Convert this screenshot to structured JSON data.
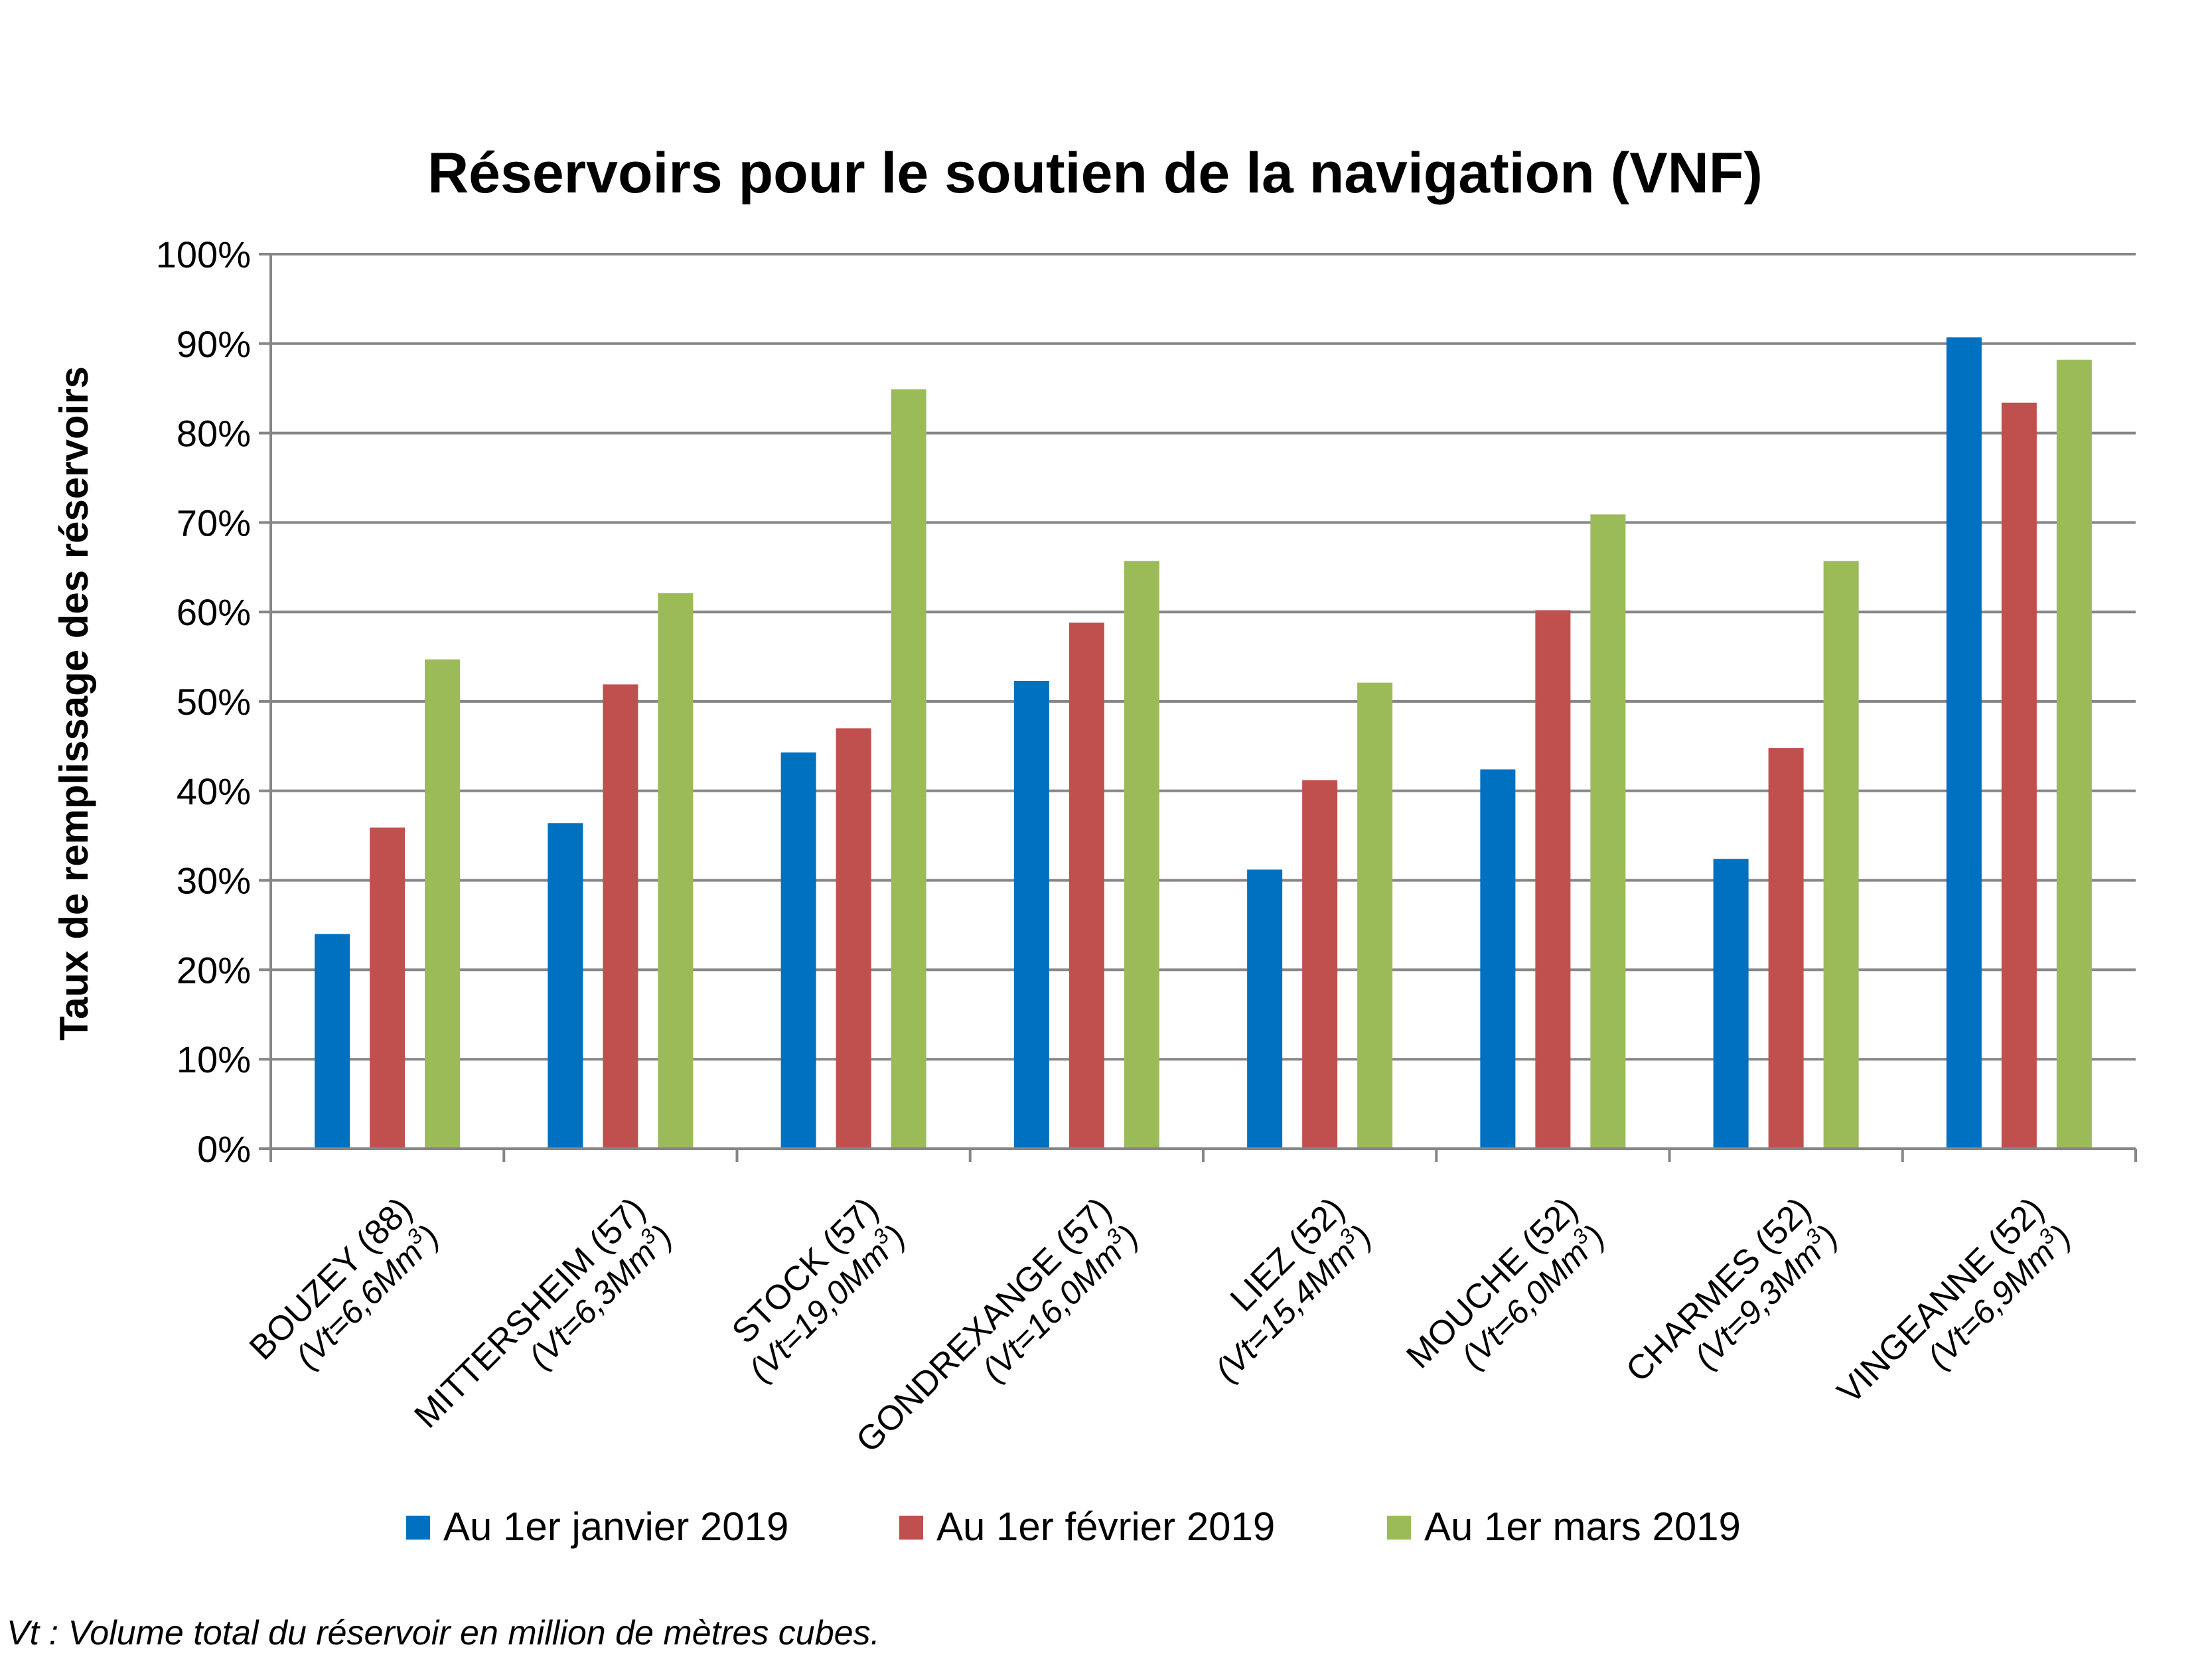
{
  "chart_data": {
    "type": "bar",
    "title": "Réservoirs pour le soutien de la navigation (VNF)",
    "ylabel": "Taux de remplissage des réservoirs",
    "xlabel": "",
    "ylim": [
      0,
      100
    ],
    "yticks": [
      "0%",
      "10%",
      "20%",
      "30%",
      "40%",
      "50%",
      "60%",
      "70%",
      "80%",
      "90%",
      "100%"
    ],
    "grid": true,
    "legend_position": "bottom",
    "categories": [
      {
        "name": "BOUZEY (88)",
        "vol_prefix": "(Vt=6,6Mm",
        "vol_sup": "3",
        "vol_suffix": ")"
      },
      {
        "name": "MITTERSHEIM (57)",
        "vol_prefix": "(Vt=6,3Mm",
        "vol_sup": "3",
        "vol_suffix": ")"
      },
      {
        "name": "STOCK (57)",
        "vol_prefix": "(Vt=19,0Mm",
        "vol_sup": "3",
        "vol_suffix": ")"
      },
      {
        "name": "GONDREXANGE (57)",
        "vol_prefix": "(Vt=16,0Mm",
        "vol_sup": "3",
        "vol_suffix": ")"
      },
      {
        "name": "LIEZ (52)",
        "vol_prefix": "(Vt=15,4Mm",
        "vol_sup": "3",
        "vol_suffix": ")"
      },
      {
        "name": "MOUCHE (52)",
        "vol_prefix": "(Vt=6,0Mm",
        "vol_sup": "3",
        "vol_suffix": ")"
      },
      {
        "name": "CHARMES (52)",
        "vol_prefix": "(Vt=9,3Mm",
        "vol_sup": "3",
        "vol_suffix": ")"
      },
      {
        "name": "VINGEANNE (52)",
        "vol_prefix": "(Vt=6,9Mm",
        "vol_sup": "3",
        "vol_suffix": ")"
      }
    ],
    "series": [
      {
        "name": "Au 1er janvier 2019",
        "color": "#0070C0",
        "values": [
          24,
          36.4,
          44.3,
          52.3,
          31.2,
          42.4,
          32.4,
          90.7
        ]
      },
      {
        "name": "Au 1er février 2019",
        "color": "#C0504D",
        "values": [
          35.9,
          51.9,
          47,
          58.8,
          41.2,
          60.2,
          44.8,
          83.4
        ]
      },
      {
        "name": "Au 1er mars 2019",
        "color": "#9BBB59",
        "values": [
          54.7,
          62.1,
          84.9,
          65.7,
          52.1,
          70.9,
          65.7,
          88.2
        ]
      }
    ],
    "footnote": "Vt : Volume total du réservoir en million de mètres cubes."
  }
}
